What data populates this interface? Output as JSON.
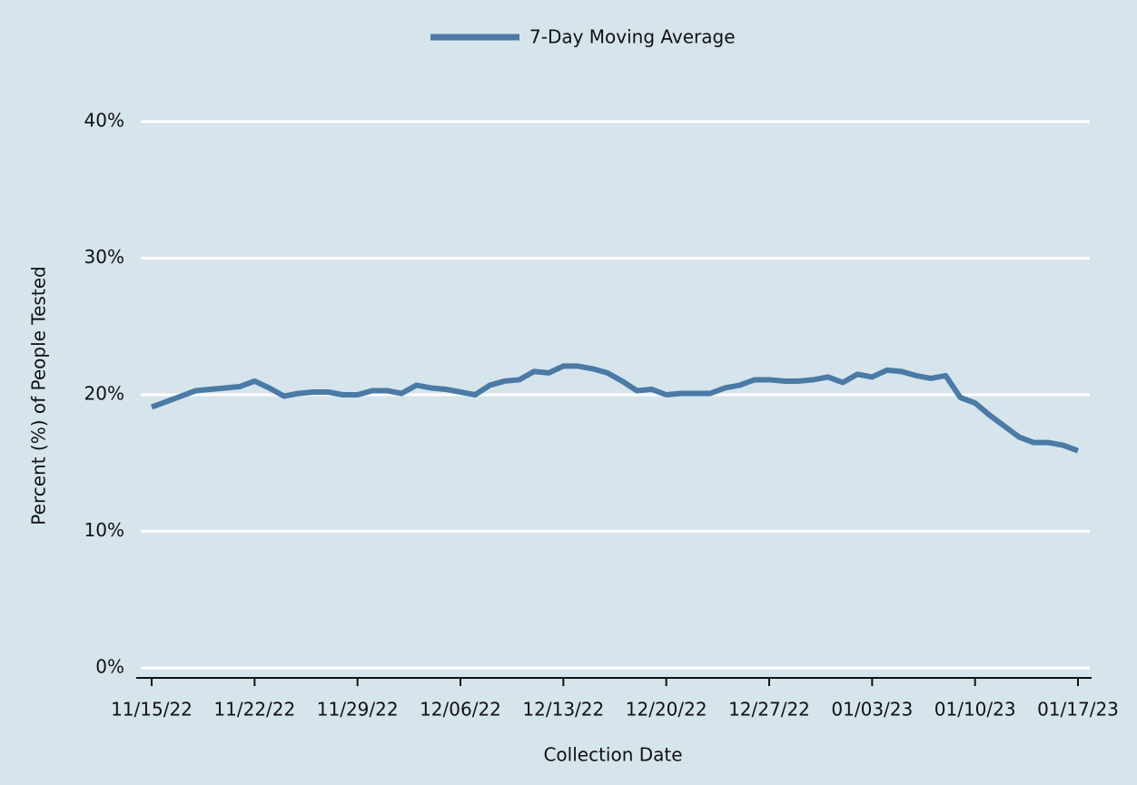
{
  "chart_data": {
    "type": "line",
    "xlabel": "Collection Date",
    "ylabel": "Percent (%) of People Tested",
    "x": [
      "11/15/22",
      "11/16/22",
      "11/17/22",
      "11/18/22",
      "11/19/22",
      "11/20/22",
      "11/21/22",
      "11/22/22",
      "11/23/22",
      "11/24/22",
      "11/25/22",
      "11/26/22",
      "11/27/22",
      "11/28/22",
      "11/29/22",
      "11/30/22",
      "12/01/22",
      "12/02/22",
      "12/03/22",
      "12/04/22",
      "12/05/22",
      "12/06/22",
      "12/07/22",
      "12/08/22",
      "12/09/22",
      "12/10/22",
      "12/11/22",
      "12/12/22",
      "12/13/22",
      "12/14/22",
      "12/15/22",
      "12/16/22",
      "12/17/22",
      "12/18/22",
      "12/19/22",
      "12/20/22",
      "12/21/22",
      "12/22/22",
      "12/23/22",
      "12/24/22",
      "12/25/22",
      "12/26/22",
      "12/27/22",
      "12/28/22",
      "12/29/22",
      "12/30/22",
      "12/31/22",
      "01/01/23",
      "01/02/23",
      "01/03/23",
      "01/04/23",
      "01/05/23",
      "01/06/23",
      "01/07/23",
      "01/08/23",
      "01/09/23",
      "01/10/23",
      "01/11/23",
      "01/12/23",
      "01/13/23",
      "01/14/23",
      "01/15/23",
      "01/16/23",
      "01/17/23"
    ],
    "series": [
      {
        "name": "7-Day Moving Average",
        "color": "#4a7aa5",
        "values": [
          19.1,
          19.5,
          19.9,
          20.3,
          20.4,
          20.5,
          20.6,
          21.0,
          20.5,
          19.9,
          20.1,
          20.2,
          20.2,
          20.0,
          20.0,
          20.3,
          20.3,
          20.1,
          20.7,
          20.5,
          20.4,
          20.2,
          20.0,
          20.7,
          21.0,
          21.1,
          21.7,
          21.6,
          22.1,
          22.1,
          21.9,
          21.6,
          21.0,
          20.3,
          20.4,
          20.0,
          20.1,
          20.1,
          20.1,
          20.5,
          20.7,
          21.1,
          21.1,
          21.0,
          21.0,
          21.1,
          21.3,
          20.9,
          21.5,
          21.3,
          21.8,
          21.7,
          21.4,
          21.2,
          21.4,
          19.8,
          19.4,
          18.5,
          17.7,
          16.9,
          16.5,
          16.5,
          16.3,
          15.9
        ]
      }
    ],
    "xticks": [
      "11/15/22",
      "11/22/22",
      "11/29/22",
      "12/06/22",
      "12/13/22",
      "12/20/22",
      "12/27/22",
      "01/03/23",
      "01/10/23",
      "01/17/23"
    ],
    "ylim": [
      0,
      40
    ],
    "yticks": [
      {
        "value": 0,
        "label": "0%"
      },
      {
        "value": 10,
        "label": "10%"
      },
      {
        "value": 20,
        "label": "20%"
      },
      {
        "value": 30,
        "label": "30%"
      },
      {
        "value": 40,
        "label": "40%"
      }
    ],
    "grid": true,
    "legend": "top"
  }
}
